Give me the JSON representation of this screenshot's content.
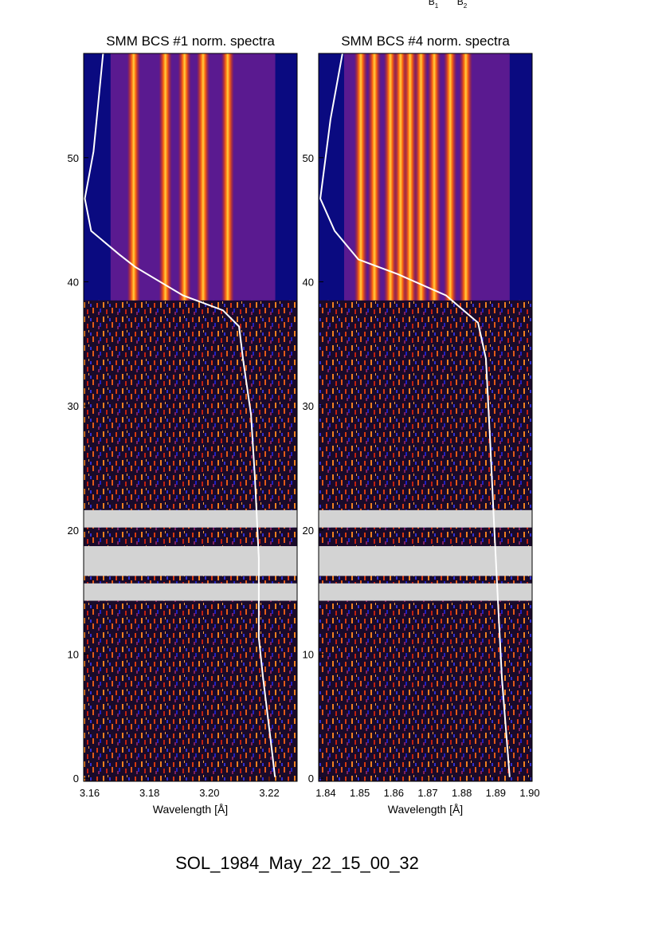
{
  "top_labels": [
    {
      "text": "B",
      "sub": "1"
    },
    {
      "text": "B",
      "sub": "2"
    }
  ],
  "footer": "SOL_1984_May_22_15_00_32",
  "chart_data": [
    {
      "type": "spectrogram",
      "title": "SMM BCS #1 norm. spectra",
      "x_label": "Wavelength [Å]",
      "xlim": [
        3.158,
        3.2293
      ],
      "xticks": [
        3.16,
        3.18,
        {
          "value": 3.2,
          "label": "3.20"
        },
        3.22
      ],
      "ylim": [
        -0.25,
        58.4
      ],
      "yticks": [
        0,
        10,
        20,
        30,
        40,
        50
      ],
      "spectral_range": [
        3.167,
        3.222
      ],
      "onset": 38.5,
      "emission_lines": [
        3.1747,
        3.1853,
        3.1917,
        3.1979,
        3.2061
      ],
      "data_gaps": [
        [
          20.2,
          21.6
        ],
        [
          16.3,
          18.7
        ],
        [
          14.3,
          15.7
        ]
      ],
      "line": {
        "color": "#ffffff",
        "x": [
          3.1645,
          3.1613,
          3.1584,
          3.1605,
          3.1699,
          3.1752,
          3.1912,
          3.2045,
          3.2099,
          3.2112,
          3.2139,
          3.2152,
          3.2165,
          3.2165,
          3.2179,
          3.2205,
          3.2219
        ],
        "y": [
          58.4,
          50.5,
          46.7,
          44.1,
          42.2,
          41.2,
          38.9,
          37.7,
          36.4,
          33.8,
          29.3,
          24.2,
          17.7,
          11.3,
          8.1,
          3.0,
          0.1
        ]
      }
    },
    {
      "type": "spectrogram",
      "title": "SMM BCS #4 norm. spectra",
      "x_label": "Wavelength [Å]",
      "xlim": [
        1.8379,
        1.9007
      ],
      "xticks": [
        1.84,
        1.85,
        1.86,
        1.87,
        1.88,
        1.89,
        {
          "value": 1.9,
          "label": "1.90"
        }
      ],
      "ylim": [
        -0.25,
        58.4
      ],
      "yticks": [
        0,
        10,
        20,
        30,
        40,
        50
      ],
      "spectral_range": [
        1.8454,
        1.8941
      ],
      "onset": 38.5,
      "emission_lines": [
        1.8503,
        1.8543,
        1.859,
        1.862,
        1.8648,
        1.868,
        1.8719,
        1.8766,
        1.8812
      ],
      "data_gaps": [
        [
          20.2,
          21.6
        ],
        [
          16.3,
          18.7
        ],
        [
          14.3,
          15.7
        ]
      ],
      "line": {
        "color": "#ffffff",
        "x": [
          1.8449,
          1.8414,
          1.8384,
          1.8426,
          1.8496,
          1.8613,
          1.8754,
          1.8848,
          1.8871,
          1.8883,
          1.8894,
          1.8906,
          1.8918,
          1.8941
        ],
        "y": [
          58.4,
          53.1,
          46.7,
          44.1,
          41.8,
          40.6,
          38.9,
          36.7,
          33.8,
          27.4,
          21.0,
          14.5,
          8.1,
          0.1
        ]
      }
    }
  ]
}
